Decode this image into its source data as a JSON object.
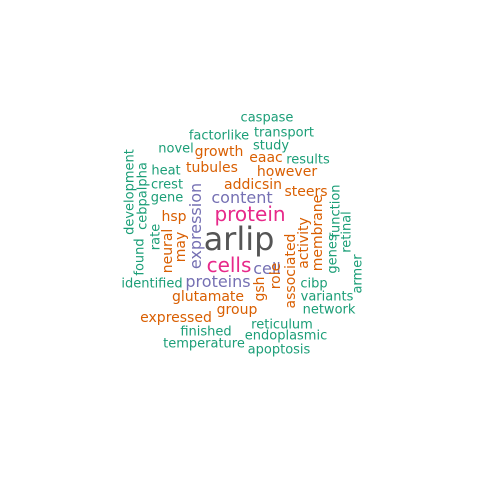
{
  "colors": {
    "teal": "#1b9e77",
    "orange": "#d95f02",
    "purple": "#7570b3",
    "magenta": "#e7298a",
    "gray": "#555555"
  },
  "words": {
    "arlip": "arlip",
    "protein": "protein",
    "cells": "cells",
    "expression": "expression",
    "content": "content",
    "proteins": "proteins",
    "cell": "cell",
    "addicsin": "addicsin",
    "glutamate": "glutamate",
    "associated": "associated",
    "activity": "activity",
    "membrane": "membrane",
    "neural": "neural",
    "may": "may",
    "hsp": "hsp",
    "steers": "steers",
    "growth": "growth",
    "tubules": "tubules",
    "eaac": "eaac",
    "however": "however",
    "role": "role",
    "gsh": "gsh",
    "group": "group",
    "expressed": "expressed",
    "caspase": "caspase",
    "transport": "transport",
    "factorlike": "factorlike",
    "study": "study",
    "novel": "novel",
    "results": "results",
    "heat": "heat",
    "crest": "crest",
    "gene": "gene",
    "development": "development",
    "cebpalpha": "cebpalpha",
    "rate": "rate",
    "found": "found",
    "identified": "identified",
    "function": "function",
    "retinal": "retinal",
    "genes": "genes",
    "armer": "armer",
    "cibp": "cibp",
    "variants": "variants",
    "network": "network",
    "reticulum": "reticulum",
    "finished": "finished",
    "endoplasmic": "endoplasmic",
    "temperature": "temperature",
    "apoptosis": "apoptosis"
  }
}
